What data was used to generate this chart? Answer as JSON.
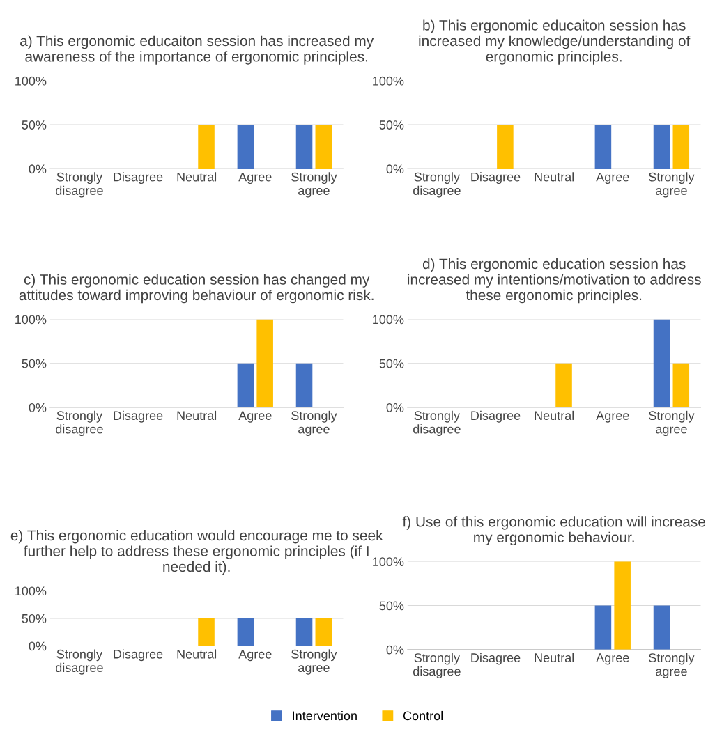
{
  "chart_data": [
    {
      "type": "bar",
      "title": "a) This ergonomic educaiton session has increased my awareness of the importance of ergonomic principles.",
      "categories": [
        "Strongly\ndisagree",
        "Disagree",
        "Neutral",
        "Agree",
        "Strongly\nagree"
      ],
      "ylim": [
        0,
        100
      ],
      "yticks": [
        {
          "value": 0,
          "label": "0%"
        },
        {
          "value": 50,
          "label": "50%"
        },
        {
          "value": 100,
          "label": "100%"
        }
      ],
      "grid": "y",
      "series": [
        {
          "color": "#4472c4",
          "values": [
            0,
            0,
            0,
            50,
            50
          ]
        },
        {
          "color": "#ffc000",
          "values": [
            0,
            0,
            50,
            0,
            50
          ]
        }
      ]
    },
    {
      "type": "bar",
      "title": "b) This ergonomic educaiton session has increased my knowledge/understanding of ergonomic principles.",
      "categories": [
        "Strongly\ndisagree",
        "Disagree",
        "Neutral",
        "Agree",
        "Strongly\nagree"
      ],
      "ylim": [
        0,
        100
      ],
      "yticks": [
        {
          "value": 0,
          "label": "0%"
        },
        {
          "value": 50,
          "label": "50%"
        },
        {
          "value": 100,
          "label": "100%"
        }
      ],
      "grid": "y",
      "series": [
        {
          "color": "#4472c4",
          "values": [
            0,
            0,
            0,
            50,
            50
          ]
        },
        {
          "color": "#ffc000",
          "values": [
            0,
            50,
            0,
            0,
            50
          ]
        }
      ]
    },
    {
      "type": "bar",
      "title": "c) This ergonomic education session has changed my attitudes toward improving behaviour of ergonomic risk.",
      "categories": [
        "Strongly\ndisagree",
        "Disagree",
        "Neutral",
        "Agree",
        "Strongly\nagree"
      ],
      "ylim": [
        0,
        100
      ],
      "yticks": [
        {
          "value": 0,
          "label": "0%"
        },
        {
          "value": 50,
          "label": "50%"
        },
        {
          "value": 100,
          "label": "100%"
        }
      ],
      "grid": "y",
      "series": [
        {
          "color": "#4472c4",
          "values": [
            0,
            0,
            0,
            50,
            50
          ]
        },
        {
          "color": "#ffc000",
          "values": [
            0,
            0,
            0,
            100,
            0
          ]
        }
      ]
    },
    {
      "type": "bar",
      "title": "d) This ergonomic education session has increased my intentions/motivation to address these ergonomic principles.",
      "categories": [
        "Strongly\ndisagree",
        "Disagree",
        "Neutral",
        "Agree",
        "Strongly\nagree"
      ],
      "ylim": [
        0,
        100
      ],
      "yticks": [
        {
          "value": 0,
          "label": "0%"
        },
        {
          "value": 50,
          "label": "50%"
        },
        {
          "value": 100,
          "label": "100%"
        }
      ],
      "grid": "y",
      "series": [
        {
          "color": "#4472c4",
          "values": [
            0,
            0,
            0,
            0,
            100
          ]
        },
        {
          "color": "#ffc000",
          "values": [
            0,
            0,
            50,
            0,
            50
          ]
        }
      ]
    },
    {
      "type": "bar",
      "title": "e) This ergonomic education would encourage me to seek further help to address these ergonomic principles (if I needed it).",
      "categories": [
        "Strongly\ndisagree",
        "Disagree",
        "Neutral",
        "Agree",
        "Strongly\nagree"
      ],
      "ylim": [
        0,
        100
      ],
      "yticks": [
        {
          "value": 0,
          "label": "0%"
        },
        {
          "value": 50,
          "label": "50%"
        },
        {
          "value": 100,
          "label": "100%"
        }
      ],
      "grid": "y",
      "series": [
        {
          "color": "#4472c4",
          "values": [
            0,
            0,
            0,
            50,
            50
          ]
        },
        {
          "color": "#ffc000",
          "values": [
            0,
            0,
            50,
            0,
            50
          ]
        }
      ]
    },
    {
      "type": "bar",
      "title": "f) Use of this ergonomic education will increase my ergonomic behaviour.",
      "categories": [
        "Strongly\ndisagree",
        "Disagree",
        "Neutral",
        "Agree",
        "Strongly\nagree"
      ],
      "ylim": [
        0,
        100
      ],
      "yticks": [
        {
          "value": 0,
          "label": "0%"
        },
        {
          "value": 50,
          "label": "50%"
        },
        {
          "value": 100,
          "label": "100%"
        }
      ],
      "grid": "y",
      "legend": "bottom",
      "series": [
        {
          "name": "Intervention",
          "color": "#4472c4",
          "values": [
            0,
            0,
            0,
            50,
            50
          ]
        },
        {
          "name": "Control",
          "color": "#ffc000",
          "values": [
            0,
            0,
            0,
            100,
            0
          ]
        }
      ]
    }
  ]
}
